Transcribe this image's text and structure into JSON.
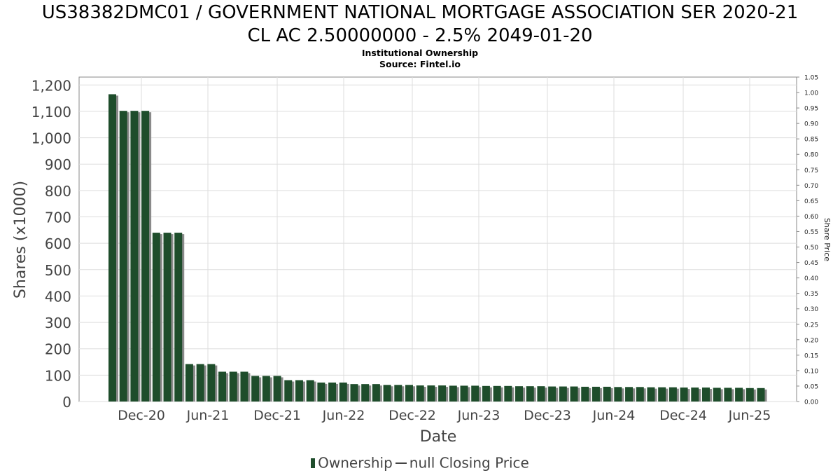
{
  "header": {
    "title_line1": "US38382DMC01 / GOVERNMENT NATIONAL MORTGAGE ASSOCIATION SER 2020-21",
    "title_line2": "CL AC 2.50000000 - 2.5% 2049-01-20",
    "subtitle": "Institutional Ownership",
    "source": "Source: Fintel.io"
  },
  "legend": {
    "ownership_label": "Ownership",
    "price_label": "null Closing Price"
  },
  "colors": {
    "bar": "#1e4d2b",
    "bar_shadow": "#8a8a8a",
    "grid": "#dddddd",
    "axis": "#888888"
  },
  "chart_data": {
    "type": "bar",
    "xlabel": "Date",
    "ylabel": "Shares (x1000)",
    "y2label": "Share Price",
    "ylim": [
      0,
      1230
    ],
    "y2lim": [
      0,
      1.05
    ],
    "yticks": [
      0,
      100,
      200,
      300,
      400,
      500,
      600,
      700,
      800,
      900,
      1000,
      1100,
      1200
    ],
    "ytick_labels": [
      "0",
      "100",
      "200",
      "300",
      "400",
      "500",
      "600",
      "700",
      "800",
      "900",
      "1,000",
      "1,100",
      "1,200"
    ],
    "y2ticks": [
      "0.00",
      "0.05",
      "0.10",
      "0.15",
      "0.20",
      "0.25",
      "0.30",
      "0.35",
      "0.40",
      "0.45",
      "0.50",
      "0.55",
      "0.60",
      "0.65",
      "0.70",
      "0.75",
      "0.80",
      "0.85",
      "0.90",
      "0.95",
      "1.00",
      "1.05"
    ],
    "xticks": [
      "Dec-20",
      "Jun-21",
      "Dec-21",
      "Jun-22",
      "Dec-22",
      "Jun-23",
      "Dec-23",
      "Jun-24",
      "Dec-24",
      "Jun-25"
    ],
    "grid": true,
    "legend_position": "bottom",
    "series": [
      {
        "name": "Ownership",
        "values": [
          1165,
          1102,
          1102,
          1102,
          640,
          640,
          640,
          142,
          142,
          142,
          113,
          113,
          113,
          97,
          97,
          97,
          81,
          81,
          81,
          72,
          72,
          72,
          66,
          66,
          66,
          63,
          63,
          63,
          61,
          61,
          61,
          60,
          60,
          60,
          59,
          59,
          59,
          58,
          58,
          58,
          57,
          57,
          57,
          56,
          56,
          56,
          55,
          55,
          55,
          54,
          54,
          54,
          53,
          53,
          53,
          52,
          52,
          52,
          51,
          51
        ]
      },
      {
        "name": "null Closing Price",
        "values": []
      }
    ]
  }
}
